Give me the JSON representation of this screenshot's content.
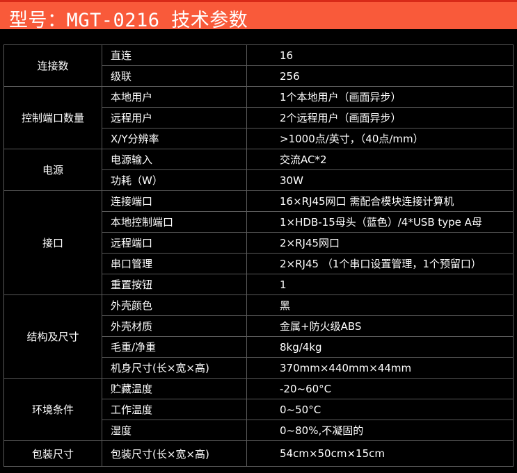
{
  "title": "型号：MGT-0216 技术参数",
  "groups": [
    {
      "label": "连接数",
      "rows": [
        [
          "直连",
          "16"
        ],
        [
          "级联",
          "256"
        ]
      ]
    },
    {
      "label": "控制端口数量",
      "rows": [
        [
          "本地用户",
          "1个本地用户（画面异步）"
        ],
        [
          "远程用户",
          "2个远程用户（画面异步）"
        ],
        [
          "X/Y分辨率",
          ">1000点/英寸，（40点/mm）"
        ]
      ]
    },
    {
      "label": "电源",
      "rows": [
        [
          "电源输入",
          "交流AC*2"
        ],
        [
          "功耗（W）",
          "30W"
        ]
      ]
    },
    {
      "label": "接口",
      "rows": [
        [
          "连接端口",
          "16×RJ45网口  需配合模块连接计算机"
        ],
        [
          "本地控制端口",
          "1×HDB-15母头（蓝色）/4*USB type A母"
        ],
        [
          "远程端口",
          "2×RJ45网口"
        ],
        [
          "串口管理",
          "2×RJ45 （1个串口设置管理，1个预留口）"
        ],
        [
          "重置按钮",
          "1"
        ]
      ]
    },
    {
      "label": "结构及尺寸",
      "rows": [
        [
          "外壳颜色",
          "黑"
        ],
        [
          "外壳材质",
          "金属+防火级ABS"
        ],
        [
          "毛重/净重",
          "8kg/4kg"
        ],
        [
          "机身尺寸(长×宽×高)",
          "370mm×440mm×44mm"
        ]
      ]
    },
    {
      "label": "环境条件",
      "rows": [
        [
          "贮藏温度",
          "-20~60°C"
        ],
        [
          "工作温度",
          "0~50°C"
        ],
        [
          "湿度",
          "0~80%,不凝固的"
        ]
      ]
    },
    {
      "label": "包装尺寸",
      "rows": [
        [
          "包装尺寸(长×宽×高)",
          "54cm×50cm×15cm"
        ]
      ]
    }
  ]
}
